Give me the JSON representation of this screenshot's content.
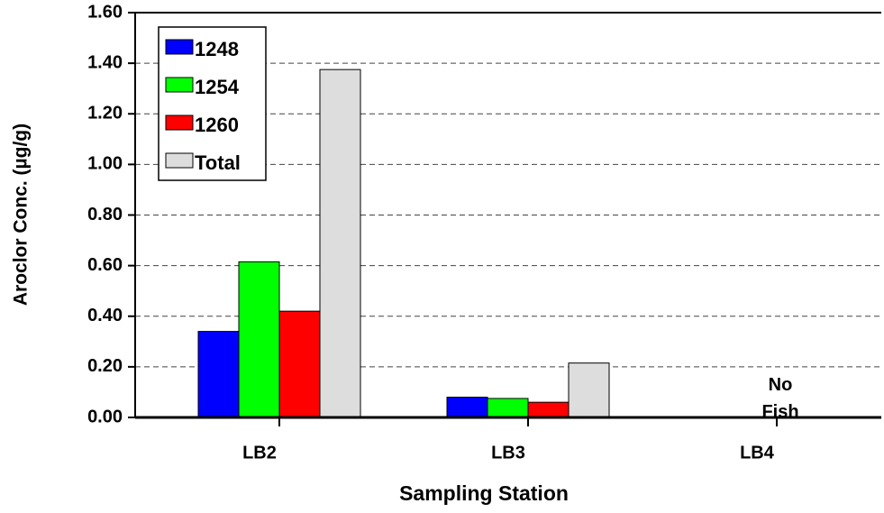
{
  "chart_data": {
    "type": "bar",
    "xlabel": "Sampling Station",
    "ylabel": "Aroclor Conc. (µg/g)",
    "categories": [
      "LB2",
      "LB3",
      "LB4"
    ],
    "series": [
      {
        "name": "1248",
        "color": "#0000ff",
        "values": [
          0.34,
          0.08,
          null
        ]
      },
      {
        "name": "1254",
        "color": "#00ff00",
        "values": [
          0.615,
          0.075,
          null
        ]
      },
      {
        "name": "1260",
        "color": "#ff0000",
        "values": [
          0.42,
          0.06,
          null
        ]
      },
      {
        "name": "Total",
        "color": "#dddddd",
        "values": [
          1.375,
          0.215,
          null
        ]
      }
    ],
    "annotations": [
      "No Fish"
    ],
    "ylim": [
      0,
      1.6
    ],
    "yticks": [
      {
        "value": 0,
        "label": "0.00"
      },
      {
        "value": 0.2,
        "label": "0.20"
      },
      {
        "value": 0.4,
        "label": "0.40"
      },
      {
        "value": 0.6,
        "label": "0.60"
      },
      {
        "value": 0.8,
        "label": "0.80"
      },
      {
        "value": 1.0,
        "label": "1.00"
      },
      {
        "value": 1.2,
        "label": "1.20"
      },
      {
        "value": 1.4,
        "label": "1.40"
      },
      {
        "value": 1.6,
        "label": "1.60"
      }
    ],
    "grid": true,
    "legend": "upper left"
  }
}
